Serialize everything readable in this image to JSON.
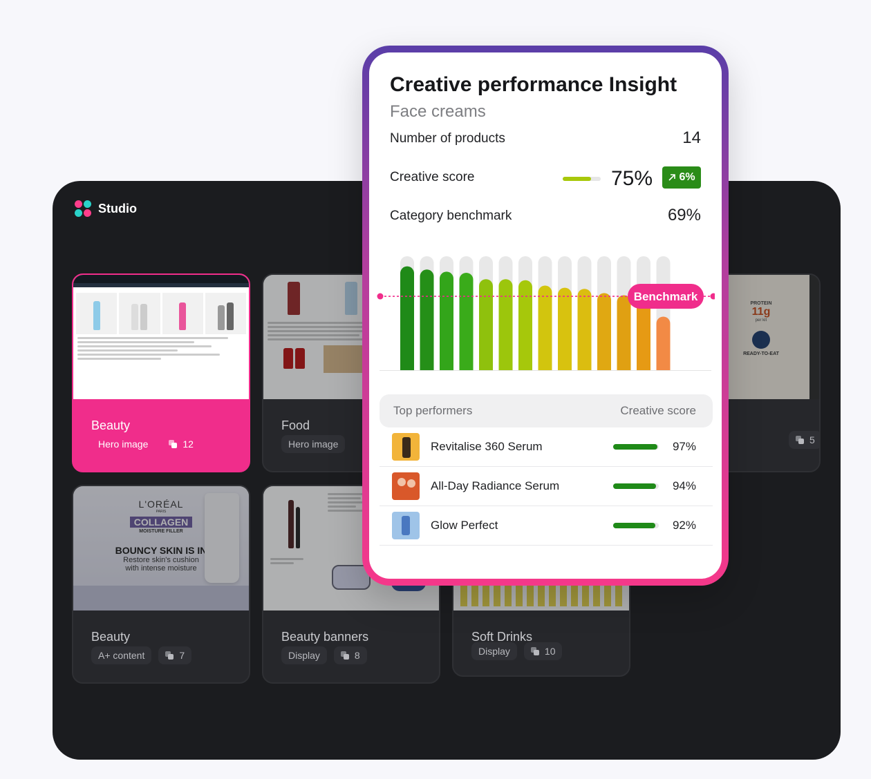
{
  "app": {
    "name": "Studio"
  },
  "cards": [
    {
      "title": "Beauty",
      "type": "Hero image",
      "count": "12",
      "active": true
    },
    {
      "title": "Food",
      "type": "Hero image",
      "count": ""
    },
    {
      "title": "",
      "type": "",
      "count": "5"
    },
    {
      "title": "Beauty",
      "type": "A+ content",
      "count": "7"
    },
    {
      "title": "Beauty banners",
      "type": "Display",
      "count": "8"
    },
    {
      "title": "Soft Drinks",
      "type": "Display",
      "count": "10"
    }
  ],
  "thumbs": {
    "loreal": {
      "brand": "L'ORÉAL",
      "paris": "PARIS",
      "collagen": "COLLAGEN",
      "filler": "MOISTURE FILLER",
      "headline": "BOUNCY SKIN IS IN",
      "sub1": "Restore skin's cushion",
      "sub2": "with intense moisture"
    },
    "protein": {
      "label": "PROTEIN",
      "amount": "11g",
      "per": "per kit",
      "ready": "READY-TO-EAT"
    }
  },
  "insight": {
    "title": "Creative performance Insight",
    "subtitle": "Face creams",
    "products_label": "Number of products",
    "products_value": "14",
    "score_label": "Creative score",
    "score_value": "75%",
    "score_fraction": 0.75,
    "delta": "6%",
    "benchmark_label": "Category benchmark",
    "benchmark_value": "69%"
  },
  "chart_data": {
    "type": "bar",
    "values": [
      0.97,
      0.94,
      0.92,
      0.91,
      0.85,
      0.85,
      0.84,
      0.79,
      0.77,
      0.76,
      0.72,
      0.7,
      0.66,
      0.5
    ],
    "benchmark": 0.69,
    "benchmark_label": "Benchmark",
    "colors": [
      "#1f8a18",
      "#258f18",
      "#33a51a",
      "#3aab1a",
      "#8fc10d",
      "#9cc60c",
      "#a6c80b",
      "#d2c50e",
      "#d8c20f",
      "#dbbd10",
      "#e0a812",
      "#e0a012",
      "#e69a14",
      "#f28a45"
    ],
    "track_color": "#e8e8e8",
    "benchmark_color": "#f02d8b"
  },
  "top_performers": {
    "header_left": "Top performers",
    "header_right": "Creative score",
    "rows": [
      {
        "name": "Revitalise 360 Serum",
        "score": "97%",
        "fraction": 0.97
      },
      {
        "name": "All-Day Radiance Serum",
        "score": "94%",
        "fraction": 0.94
      },
      {
        "name": "Glow Perfect",
        "score": "92%",
        "fraction": 0.92
      }
    ]
  }
}
